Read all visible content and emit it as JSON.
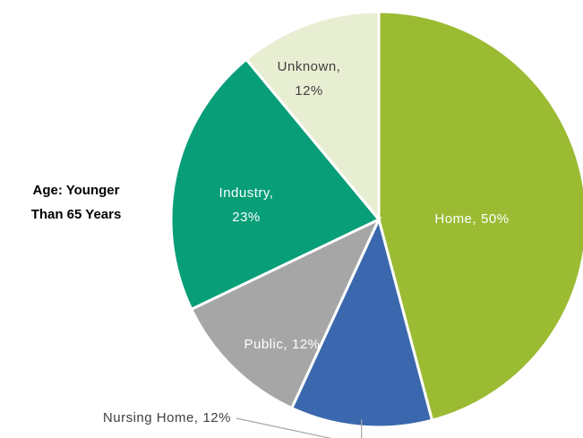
{
  "chart_data": {
    "type": "pie",
    "title": "Age: Younger Than 65 Years",
    "categories": [
      "Home,",
      "Nursing Home,",
      "Public,",
      "Industry,",
      "Unknown,"
    ],
    "values": [
      50,
      12,
      12,
      23,
      12
    ],
    "value_labels": [
      "50%",
      "12%",
      "12%",
      "23%",
      "12%"
    ],
    "colors": [
      "#9bbb33",
      "#3a67ad",
      "#a6a6a6",
      "#079e78",
      "#e8eed2"
    ],
    "label_colors": [
      "#ffffff",
      "#404040",
      "#ffffff",
      "#ffffff",
      "#404040"
    ]
  }
}
